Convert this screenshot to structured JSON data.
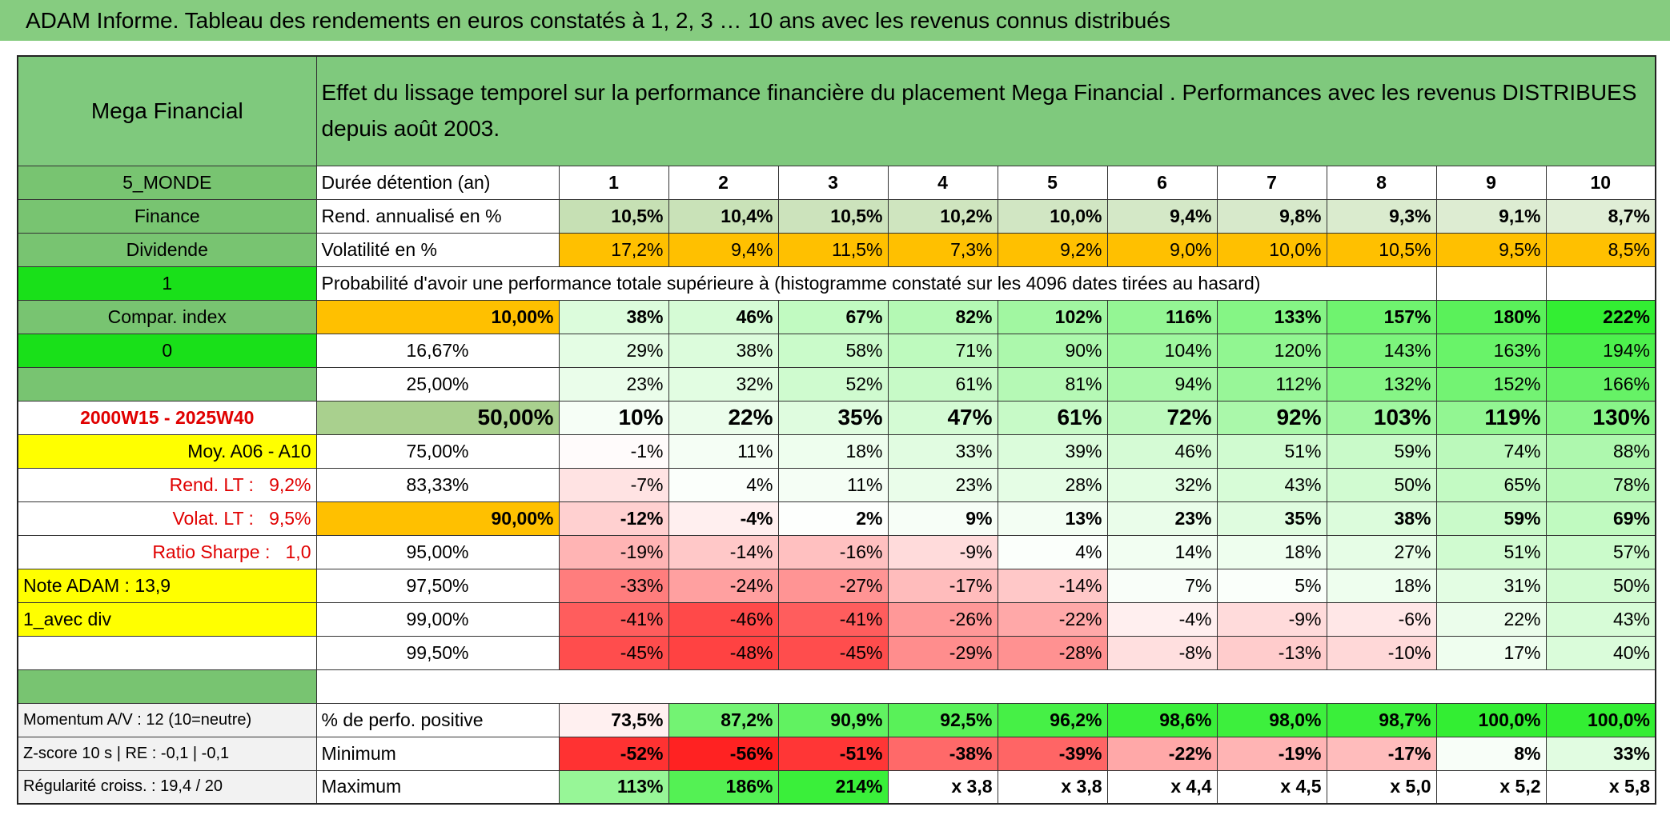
{
  "title": "ADAM Informe. Tableau des rendements en euros constatés à 1, 2, 3 … 10 ans avec les revenus connus distribués",
  "table": {
    "name": "Mega Financial",
    "description": "Effet du lissage temporel sur la performance financière du placement Mega Financial . Performances avec les revenus DISTRIBUES depuis août 2003.",
    "rows": [
      {
        "left": "5_MONDE",
        "label": "Durée détention (an)",
        "values": [
          "1",
          "2",
          "3",
          "4",
          "5",
          "6",
          "7",
          "8",
          "9",
          "10"
        ]
      },
      {
        "left": "Finance",
        "label": "Rend. annualisé en %",
        "values": [
          "10,5%",
          "10,4%",
          "10,5%",
          "10,2%",
          "10,0%",
          "9,4%",
          "9,8%",
          "9,3%",
          "9,1%",
          "8,7%"
        ]
      },
      {
        "left": "Dividende",
        "label": "Volatilité en %",
        "values": [
          "17,2%",
          "9,4%",
          "11,5%",
          "7,3%",
          "9,2%",
          "9,0%",
          "10,0%",
          "10,5%",
          "9,5%",
          "8,5%"
        ]
      },
      {
        "left": "1",
        "label": "Probabilité d'avoir une performance totale supérieure à (histogramme constaté sur les 4096 dates tirées au hasard)"
      },
      {
        "left": "Compar. index",
        "label": "10,00%",
        "values": [
          "38%",
          "46%",
          "67%",
          "82%",
          "102%",
          "116%",
          "133%",
          "157%",
          "180%",
          "222%"
        ]
      },
      {
        "left": "0",
        "label": "16,67%",
        "values": [
          "29%",
          "38%",
          "58%",
          "71%",
          "90%",
          "104%",
          "120%",
          "143%",
          "163%",
          "194%"
        ]
      },
      {
        "label": "25,00%",
        "values": [
          "23%",
          "32%",
          "52%",
          "61%",
          "81%",
          "94%",
          "112%",
          "132%",
          "152%",
          "166%"
        ]
      },
      {
        "left": "2000W15 - 2025W40",
        "label": "50,00%",
        "values": [
          "10%",
          "22%",
          "35%",
          "47%",
          "61%",
          "72%",
          "92%",
          "103%",
          "119%",
          "130%"
        ]
      },
      {
        "left": "Moy. A06 - A10",
        "label": "75,00%",
        "values": [
          "-1%",
          "11%",
          "18%",
          "33%",
          "39%",
          "46%",
          "51%",
          "59%",
          "74%",
          "88%"
        ]
      },
      {
        "left": "Rend. LT :   9,2%",
        "label": "83,33%",
        "values": [
          "-7%",
          "4%",
          "11%",
          "23%",
          "28%",
          "32%",
          "43%",
          "50%",
          "65%",
          "78%"
        ]
      },
      {
        "left": "Volat. LT :   9,5%",
        "label": "90,00%",
        "values": [
          "-12%",
          "-4%",
          "2%",
          "9%",
          "13%",
          "23%",
          "35%",
          "38%",
          "59%",
          "69%"
        ]
      },
      {
        "left": "Ratio Sharpe :   1,0",
        "label": "95,00%",
        "values": [
          "-19%",
          "-14%",
          "-16%",
          "-9%",
          "4%",
          "14%",
          "18%",
          "27%",
          "51%",
          "57%"
        ]
      },
      {
        "left": "Note ADAM : 13,9",
        "label": "97,50%",
        "values": [
          "-33%",
          "-24%",
          "-27%",
          "-17%",
          "-14%",
          "7%",
          "5%",
          "18%",
          "31%",
          "50%"
        ]
      },
      {
        "left": "1_avec div",
        "label": "99,00%",
        "values": [
          "-41%",
          "-46%",
          "-41%",
          "-26%",
          "-22%",
          "-4%",
          "-9%",
          "-6%",
          "22%",
          "43%"
        ]
      },
      {
        "label": "99,50%",
        "values": [
          "-45%",
          "-48%",
          "-45%",
          "-29%",
          "-28%",
          "-8%",
          "-13%",
          "-10%",
          "17%",
          "40%"
        ]
      }
    ],
    "summary": [
      {
        "left": "Momentum A/V : 12 (10=neutre)",
        "label": "% de perfo. positive",
        "values": [
          "73,5%",
          "87,2%",
          "90,9%",
          "92,5%",
          "96,2%",
          "98,6%",
          "98,0%",
          "98,7%",
          "100,0%",
          "100,0%"
        ]
      },
      {
        "left": "Z-score 10 s | RE : -0,1 | -0,1",
        "label": "Minimum",
        "values": [
          "-52%",
          "-56%",
          "-51%",
          "-38%",
          "-39%",
          "-22%",
          "-19%",
          "-17%",
          "8%",
          "33%"
        ]
      },
      {
        "left": "Régularité croiss. : 19,4 / 20",
        "label": "Maximum",
        "values": [
          "113%",
          "186%",
          "214%",
          "x 3,8",
          "x 3,8",
          "x 4,4",
          "x 4,5",
          "x 5,0",
          "x 5,2",
          "x 5,8"
        ]
      }
    ]
  }
}
